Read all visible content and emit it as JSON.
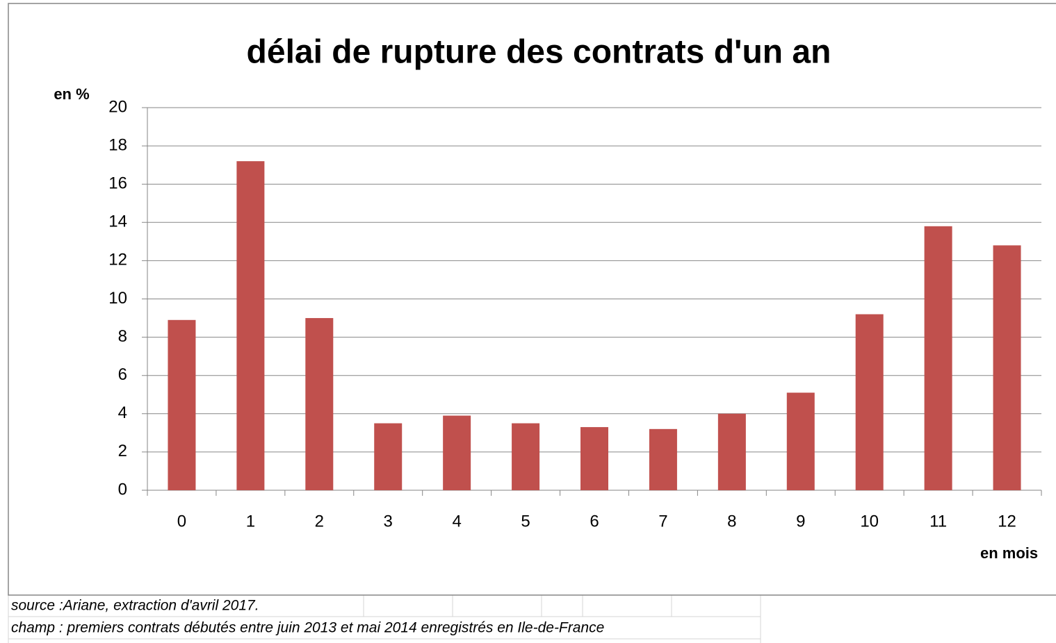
{
  "chart_data": {
    "type": "bar",
    "title": "délai de rupture des contrats d'un an",
    "y_label": "en %",
    "x_label": "en mois",
    "categories": [
      "0",
      "1",
      "2",
      "3",
      "4",
      "5",
      "6",
      "7",
      "8",
      "9",
      "10",
      "11",
      "12"
    ],
    "values": [
      8.9,
      17.2,
      9.0,
      3.5,
      3.9,
      3.5,
      3.3,
      3.2,
      4.0,
      5.1,
      9.2,
      13.8,
      12.8
    ],
    "color": "#c0504d",
    "ylim": [
      0,
      20
    ],
    "yticks": [
      0,
      2,
      4,
      6,
      8,
      10,
      12,
      14,
      16,
      18,
      20
    ],
    "grid": true
  },
  "notes": [
    "source :Ariane, extraction d'avril 2017.",
    "champ : premiers contrats débutés entre juin 2013 et mai 2014 enregistrés en Ile-de-France"
  ]
}
